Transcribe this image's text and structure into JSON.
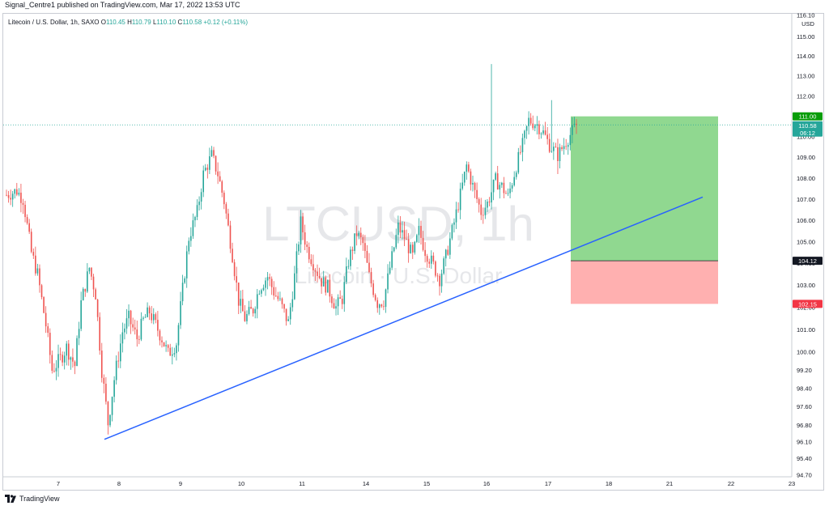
{
  "header": {
    "published": "Signal_Centre1 published on TradingView.com, Mar 17, 2022 13:53 UTC"
  },
  "legend": {
    "symbol": "Litecoin / U.S. Dollar, 1h, SAXO",
    "o_label": "O",
    "o": "110.45",
    "h_label": "H",
    "h": "110.79",
    "l_label": "L",
    "l": "110.10",
    "c_label": "C",
    "c": "110.58",
    "change": "+0.12 (+0.11%)"
  },
  "watermark": {
    "symbol": "LTCUSD, 1h",
    "name": "Litecoin · U.S. Dollar"
  },
  "footer": {
    "brand": "TradingView"
  },
  "price_axis": {
    "currency": "USD"
  },
  "colors": {
    "up": "#26a69a",
    "down": "#ef5350",
    "trendline": "#2962ff",
    "profit_zone": "#90d890",
    "loss_zone": "#ffb0b0",
    "target_badge": "#089d09",
    "price_badge": "#26a69a",
    "stop_badge": "#f23645",
    "entry_badge": "#131722"
  },
  "chart_data": {
    "type": "candlestick",
    "y_scale": "log",
    "ylim": [
      94.7,
      116.1
    ],
    "y_ticks": [
      "116.10",
      "115.00",
      "114.00",
      "113.00",
      "112.00",
      "111.00",
      "110.00",
      "109.00",
      "108.00",
      "107.00",
      "106.00",
      "105.00",
      "104.00",
      "103.00",
      "102.00",
      "101.00",
      "100.00",
      "99.20",
      "98.40",
      "97.60",
      "96.80",
      "96.10",
      "95.40",
      "94.70"
    ],
    "x_ticks": [
      "7",
      "8",
      "9",
      "10",
      "11",
      "14",
      "15",
      "16",
      "17",
      "18",
      "21",
      "22",
      "23"
    ],
    "last_price": {
      "value": 110.58,
      "label": "110.58",
      "countdown": "06:12"
    },
    "position": {
      "target": {
        "value": 111.0,
        "label": "111.00"
      },
      "entry": {
        "value": 104.12,
        "label": "104.12"
      },
      "stop": {
        "value": 102.15,
        "label": "102.15"
      }
    },
    "trendline": {
      "start": {
        "x_label": "8",
        "price": 96.2
      },
      "end": {
        "x_label": "22",
        "price": 107.1
      }
    },
    "swing_path": [
      [
        0,
        107.2
      ],
      [
        5,
        107.4
      ],
      [
        8,
        107.0
      ],
      [
        12,
        104.5
      ],
      [
        15,
        103.5
      ],
      [
        19,
        101.2
      ],
      [
        22,
        99.2
      ],
      [
        26,
        99.7
      ],
      [
        29,
        100.2
      ],
      [
        33,
        99.4
      ],
      [
        36,
        102.2
      ],
      [
        40,
        103.8
      ],
      [
        43,
        102.6
      ],
      [
        46,
        99.2
      ],
      [
        49,
        96.9
      ],
      [
        52,
        98.8
      ],
      [
        56,
        100.9
      ],
      [
        59,
        101.5
      ],
      [
        63,
        100.6
      ],
      [
        66,
        101.4
      ],
      [
        69,
        101.8
      ],
      [
        72,
        101.2
      ],
      [
        75,
        100.6
      ],
      [
        78,
        99.9
      ],
      [
        82,
        100.4
      ],
      [
        85,
        102.8
      ],
      [
        88,
        105.2
      ],
      [
        92,
        106.4
      ],
      [
        95,
        108.2
      ],
      [
        99,
        109.1
      ],
      [
        102,
        108.2
      ],
      [
        105,
        106.9
      ],
      [
        109,
        104.4
      ],
      [
        112,
        102.3
      ],
      [
        115,
        101.5
      ],
      [
        119,
        101.9
      ],
      [
        122,
        102.9
      ],
      [
        126,
        103.4
      ],
      [
        129,
        102.7
      ],
      [
        132,
        102.2
      ],
      [
        136,
        101.3
      ],
      [
        139,
        103.4
      ],
      [
        142,
        105.9
      ],
      [
        145,
        104.7
      ],
      [
        149,
        103.8
      ],
      [
        152,
        103.2
      ],
      [
        155,
        102.9
      ],
      [
        159,
        102.0
      ],
      [
        162,
        102.4
      ],
      [
        165,
        104.1
      ],
      [
        169,
        105.4
      ],
      [
        172,
        104.9
      ],
      [
        175,
        103.4
      ],
      [
        179,
        102.2
      ],
      [
        182,
        102.3
      ],
      [
        185,
        103.8
      ],
      [
        189,
        105.7
      ],
      [
        192,
        105.2
      ],
      [
        196,
        104.3
      ],
      [
        199,
        105.5
      ],
      [
        202,
        104.6
      ],
      [
        206,
        103.9
      ],
      [
        209,
        103.3
      ],
      [
        212,
        104.3
      ],
      [
        216,
        105.9
      ],
      [
        219,
        107.2
      ],
      [
        222,
        108.6
      ],
      [
        226,
        107.3
      ],
      [
        229,
        106.4
      ],
      [
        232,
        106.8
      ],
      [
        236,
        107.9
      ],
      [
        239,
        107.6
      ],
      [
        242,
        107.1
      ],
      [
        246,
        108.6
      ],
      [
        249,
        109.6
      ],
      [
        252,
        110.8
      ],
      [
        256,
        110.6
      ],
      [
        259,
        110.2
      ],
      [
        262,
        109.6
      ],
      [
        266,
        109.1
      ],
      [
        269,
        109.6
      ],
      [
        272,
        110.1
      ],
      [
        275,
        110.58
      ]
    ]
  }
}
